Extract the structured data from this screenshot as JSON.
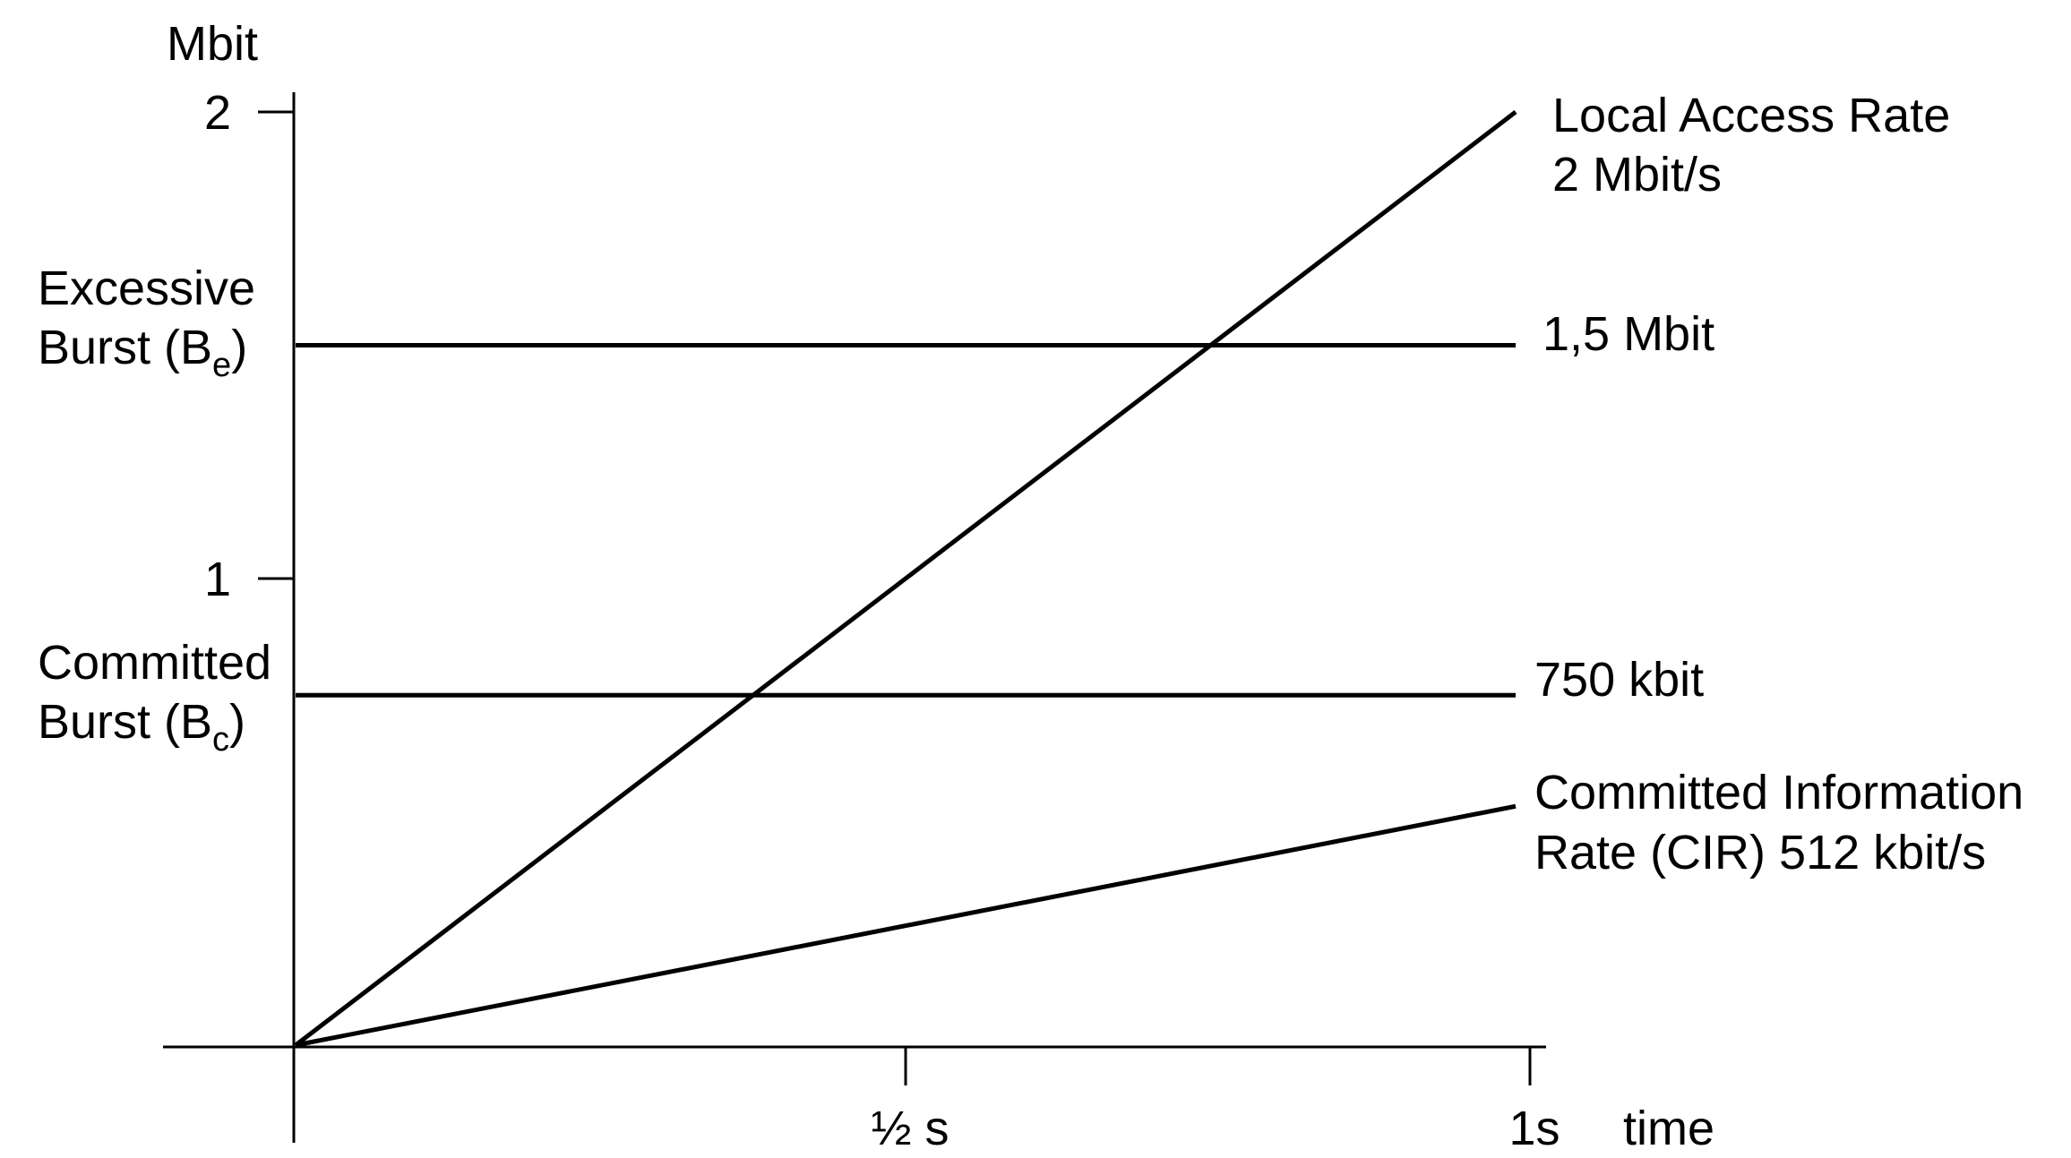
{
  "chart_data": {
    "type": "line",
    "yunit": "Mbit",
    "xunit": "time",
    "ylim": [
      0,
      2
    ],
    "xlim": [
      0,
      1
    ],
    "yticks": [
      {
        "value": 2,
        "label": "2"
      },
      {
        "value": 1,
        "label": "1"
      }
    ],
    "xticks": [
      {
        "value": 0.5,
        "label": "½ s"
      },
      {
        "value": 1,
        "label": "1s"
      }
    ],
    "series": [
      {
        "key": "access_rate",
        "name": "Local Access Rate",
        "detail": "2 Mbit/s",
        "x": [
          0,
          1
        ],
        "y": [
          0,
          2
        ]
      },
      {
        "key": "cir",
        "name": "Committed Information",
        "detail": "Rate (CIR) 512 kbit/s",
        "x": [
          0,
          1
        ],
        "y": [
          0,
          0.512
        ]
      }
    ],
    "thresholds": [
      {
        "key": "be",
        "value": 1.5,
        "value_label": "1,5 Mbit",
        "label_line1": "Excessive",
        "label_line2_prefix": "Burst (B",
        "label_sub": "e",
        "label_line2_suffix": ")"
      },
      {
        "key": "bc",
        "value": 0.75,
        "value_label": "750 kbit",
        "label_line1": "Committed",
        "label_line2_prefix": "Burst (B",
        "label_sub": "c",
        "label_line2_suffix": ")"
      }
    ],
    "grid": false,
    "legend": "none"
  }
}
